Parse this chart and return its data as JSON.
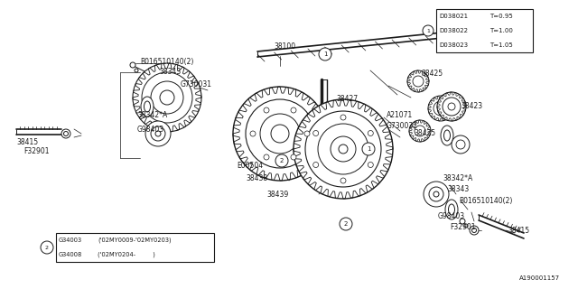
{
  "bg_color": "#ffffff",
  "line_color": "#1a1a1a",
  "text_color": "#1a1a1a",
  "figsize": [
    6.4,
    3.2
  ],
  "dpi": 100,
  "top_right_table": {
    "rows": [
      {
        "part": "D038021",
        "val": "T=0.95"
      },
      {
        "part": "D038022",
        "val": "T=1.00"
      },
      {
        "part": "D038023",
        "val": "T=1.05"
      }
    ]
  },
  "bottom_left_table": {
    "rows": [
      {
        "part": "G34003",
        "val": "('02MY0009-'02MY0203)"
      },
      {
        "part": "G34008",
        "val": "('02MY0204-         )"
      }
    ]
  },
  "bottom_right_label": "A190001157"
}
